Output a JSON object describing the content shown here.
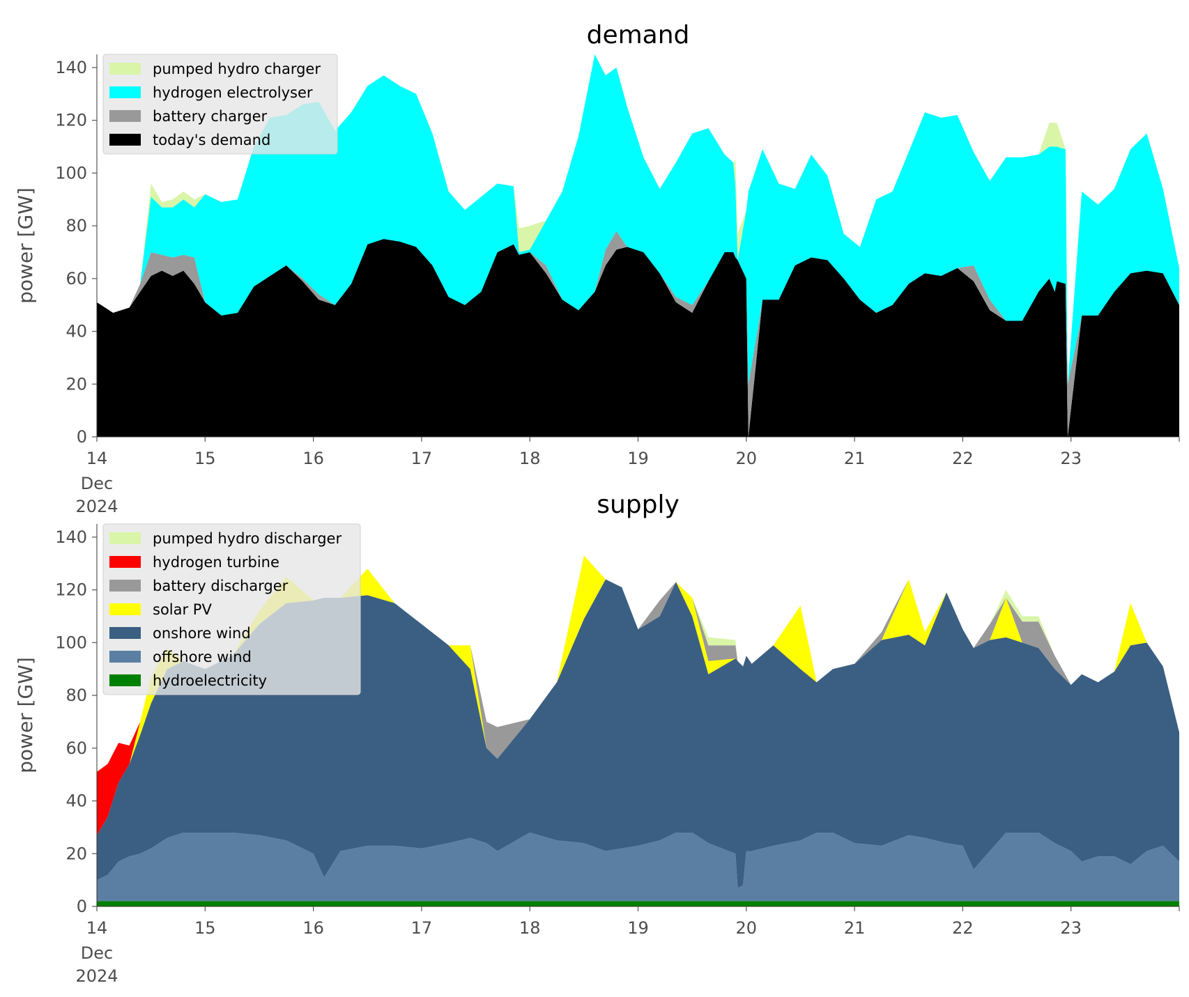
{
  "chart_data": [
    {
      "type": "area",
      "title": "demand",
      "xlabel": "",
      "ylabel": "power [GW]",
      "ylim": [
        0,
        145
      ],
      "xlim": [
        0,
        10
      ],
      "x_ticks": [
        {
          "label": "14",
          "sub": [
            "Dec",
            "2024"
          ]
        },
        {
          "label": "15"
        },
        {
          "label": "16"
        },
        {
          "label": "17"
        },
        {
          "label": "18"
        },
        {
          "label": "19"
        },
        {
          "label": "20"
        },
        {
          "label": "21"
        },
        {
          "label": "22"
        },
        {
          "label": "23"
        }
      ],
      "y_ticks": [
        "0",
        "20",
        "40",
        "60",
        "80",
        "100",
        "120",
        "140"
      ],
      "grid": false,
      "legend_position": "top-left",
      "x_days": [
        0,
        0.15,
        0.3,
        0.4,
        0.5,
        0.6,
        0.7,
        0.8,
        0.9,
        1.0,
        1.15,
        1.3,
        1.45,
        1.6,
        1.75,
        1.9,
        2.05,
        2.2,
        2.35,
        2.5,
        2.65,
        2.8,
        2.95,
        3.1,
        3.25,
        3.4,
        3.55,
        3.7,
        3.85,
        3.9,
        4.0,
        4.15,
        4.3,
        4.45,
        4.6,
        4.7,
        4.8,
        4.9,
        5.05,
        5.2,
        5.35,
        5.5,
        5.65,
        5.8,
        5.88,
        5.9,
        5.92,
        6.0,
        6.02,
        6.15,
        6.3,
        6.45,
        6.6,
        6.75,
        6.9,
        7.05,
        7.2,
        7.35,
        7.5,
        7.65,
        7.8,
        7.95,
        8.1,
        8.25,
        8.4,
        8.55,
        8.7,
        8.8,
        8.85,
        8.87,
        8.95,
        8.97,
        9.1,
        9.25,
        9.4,
        9.55,
        9.7,
        9.85,
        10.0
      ],
      "series": [
        {
          "name": "today's demand",
          "color": "#000000",
          "values": [
            51,
            47,
            49,
            55,
            61,
            63,
            61,
            63,
            58,
            51,
            46,
            47,
            57,
            61,
            65,
            59,
            52,
            50,
            58,
            73,
            75,
            74,
            72,
            65,
            53,
            50,
            55,
            70,
            73,
            69,
            70,
            62,
            52,
            48,
            55,
            65,
            71,
            72,
            70,
            62,
            51,
            47,
            59,
            70,
            70,
            68,
            67,
            60,
            0,
            52,
            52,
            65,
            68,
            67,
            60,
            52,
            47,
            50,
            58,
            62,
            61,
            64,
            59,
            48,
            44,
            44,
            55,
            60,
            55,
            59,
            58,
            0,
            46,
            46,
            55,
            62,
            63,
            62,
            50
          ]
        },
        {
          "name": "battery charger",
          "color": "#999999",
          "values": [
            0,
            0,
            0,
            3,
            9,
            6,
            7,
            6,
            10,
            0,
            0,
            0,
            0,
            0,
            0,
            1,
            2,
            0,
            0,
            0,
            0,
            0,
            0,
            0,
            0,
            0,
            0,
            0,
            0,
            0,
            0,
            3,
            0,
            0,
            0,
            6,
            7,
            0,
            0,
            0,
            2,
            3,
            0,
            0,
            0,
            0,
            0,
            0,
            20,
            0,
            0,
            0,
            0,
            0,
            0,
            0,
            0,
            0,
            0,
            0,
            0,
            0,
            6,
            4,
            0,
            0,
            0,
            0,
            0,
            0,
            0,
            20,
            0,
            0,
            0,
            0,
            0,
            0,
            0
          ]
        },
        {
          "name": "hydrogen electrolyser",
          "color": "#00ffff",
          "values": [
            0,
            0,
            0,
            0,
            21,
            18,
            19,
            21,
            19,
            41,
            43,
            43,
            53,
            60,
            57,
            66,
            73,
            66,
            65,
            60,
            62,
            59,
            58,
            50,
            40,
            36,
            36,
            26,
            22,
            1,
            1,
            17,
            41,
            66,
            90,
            66,
            62,
            53,
            36,
            32,
            51,
            65,
            58,
            37,
            34,
            27,
            0,
            26,
            73,
            57,
            44,
            29,
            39,
            32,
            17,
            20,
            43,
            43,
            50,
            61,
            60,
            58,
            43,
            45,
            62,
            62,
            52,
            50,
            55,
            51,
            51,
            0,
            47,
            42,
            39,
            47,
            52,
            32,
            14
          ]
        },
        {
          "name": "pumped hydro charger",
          "color": "#d9f5a8",
          "values": [
            0,
            0,
            0,
            0,
            5,
            2,
            3,
            3,
            3,
            0,
            0,
            0,
            0,
            0,
            0,
            0,
            0,
            0,
            0,
            0,
            0,
            0,
            0,
            0,
            0,
            0,
            0,
            0,
            0,
            9,
            9,
            0,
            0,
            0,
            0,
            0,
            0,
            0,
            0,
            0,
            0,
            0,
            0,
            0,
            0,
            10,
            10,
            0,
            0,
            0,
            0,
            0,
            0,
            0,
            0,
            0,
            0,
            0,
            0,
            0,
            0,
            0,
            0,
            0,
            0,
            0,
            0,
            9,
            9,
            9,
            0,
            0,
            0,
            0,
            0,
            0,
            0,
            0,
            0
          ]
        }
      ],
      "legend": [
        "pumped hydro charger",
        "hydrogen electrolyser",
        "battery charger",
        "today's demand"
      ]
    },
    {
      "type": "area",
      "title": "supply",
      "xlabel": "",
      "ylabel": "power [GW]",
      "ylim": [
        0,
        145
      ],
      "xlim": [
        0,
        10
      ],
      "x_ticks": [
        {
          "label": "14",
          "sub": [
            "Dec",
            "2024"
          ]
        },
        {
          "label": "15"
        },
        {
          "label": "16"
        },
        {
          "label": "17"
        },
        {
          "label": "18"
        },
        {
          "label": "19"
        },
        {
          "label": "20"
        },
        {
          "label": "21"
        },
        {
          "label": "22"
        },
        {
          "label": "23"
        }
      ],
      "y_ticks": [
        "0",
        "20",
        "40",
        "60",
        "80",
        "100",
        "120",
        "140"
      ],
      "grid": false,
      "legend_position": "top-left",
      "x_days": [
        0,
        0.1,
        0.2,
        0.3,
        0.4,
        0.5,
        0.65,
        0.8,
        1.0,
        1.25,
        1.5,
        1.75,
        2.0,
        2.1,
        2.25,
        2.5,
        2.75,
        3.0,
        3.25,
        3.45,
        3.6,
        3.7,
        4.0,
        4.25,
        4.5,
        4.7,
        4.85,
        5.0,
        5.2,
        5.35,
        5.5,
        5.65,
        5.9,
        5.92,
        5.97,
        6.0,
        6.05,
        6.25,
        6.5,
        6.65,
        6.8,
        7.0,
        7.25,
        7.5,
        7.65,
        7.85,
        8.0,
        8.1,
        8.25,
        8.4,
        8.55,
        8.7,
        8.85,
        9.0,
        9.1,
        9.25,
        9.4,
        9.55,
        9.7,
        9.85,
        10.0
      ],
      "series": [
        {
          "name": "hydroelectricity",
          "color": "#008000",
          "values": [
            2,
            2,
            2,
            2,
            2,
            2,
            2,
            2,
            2,
            2,
            2,
            2,
            2,
            2,
            2,
            2,
            2,
            2,
            2,
            2,
            2,
            2,
            2,
            2,
            2,
            2,
            2,
            2,
            2,
            2,
            2,
            2,
            2,
            2,
            2,
            2,
            2,
            2,
            2,
            2,
            2,
            2,
            2,
            2,
            2,
            2,
            2,
            2,
            2,
            2,
            2,
            2,
            2,
            2,
            2,
            2,
            2,
            2,
            2,
            2,
            2
          ]
        },
        {
          "name": "offshore wind",
          "color": "#5b7fa3",
          "values": [
            8,
            10,
            15,
            17,
            18,
            20,
            24,
            26,
            26,
            26,
            25,
            23,
            18,
            9,
            19,
            21,
            21,
            20,
            22,
            24,
            22,
            19,
            26,
            23,
            22,
            19,
            20,
            21,
            23,
            26,
            26,
            22,
            18,
            5,
            6,
            19,
            19,
            21,
            23,
            26,
            26,
            22,
            21,
            25,
            24,
            22,
            21,
            12,
            19,
            26,
            26,
            26,
            22,
            19,
            15,
            17,
            17,
            14,
            19,
            21,
            15
          ]
        },
        {
          "name": "onshore wind",
          "color": "#3b5f82",
          "values": [
            17,
            22,
            30,
            35,
            45,
            55,
            64,
            65,
            62,
            67,
            80,
            90,
            96,
            106,
            96,
            95,
            92,
            85,
            75,
            64,
            36,
            35,
            43,
            60,
            85,
            103,
            99,
            82,
            85,
            95,
            82,
            64,
            74,
            86,
            83,
            74,
            71,
            76,
            65,
            57,
            62,
            68,
            78,
            76,
            73,
            95,
            82,
            84,
            80,
            74,
            72,
            70,
            66,
            63,
            71,
            66,
            70,
            83,
            79,
            68,
            49
          ]
        },
        {
          "name": "solar PV",
          "color": "#ffff00",
          "values": [
            0,
            0,
            0,
            0,
            5,
            10,
            8,
            0,
            0,
            0,
            5,
            10,
            0,
            0,
            0,
            10,
            0,
            0,
            0,
            9,
            0,
            0,
            0,
            0,
            24,
            0,
            0,
            0,
            0,
            0,
            7,
            5,
            0,
            0,
            0,
            0,
            0,
            0,
            24,
            0,
            0,
            0,
            0,
            21,
            5,
            0,
            0,
            0,
            0,
            15,
            0,
            0,
            0,
            0,
            0,
            0,
            0,
            16,
            0,
            0,
            0
          ]
        },
        {
          "name": "battery discharger",
          "color": "#999999",
          "values": [
            0,
            0,
            0,
            0,
            0,
            0,
            0,
            0,
            0,
            0,
            0,
            0,
            0,
            0,
            0,
            0,
            0,
            0,
            0,
            0,
            10,
            12,
            0,
            0,
            0,
            0,
            0,
            0,
            6,
            0,
            0,
            6,
            5,
            0,
            0,
            0,
            0,
            0,
            0,
            0,
            0,
            0,
            3,
            0,
            0,
            0,
            0,
            0,
            6,
            0,
            8,
            10,
            5,
            0,
            0,
            0,
            0,
            0,
            0,
            0,
            0
          ]
        },
        {
          "name": "hydrogen turbine",
          "color": "#ff0000",
          "values": [
            24,
            20,
            15,
            7,
            0,
            0,
            0,
            0,
            0,
            0,
            0,
            0,
            0,
            0,
            0,
            0,
            0,
            0,
            0,
            0,
            0,
            0,
            0,
            0,
            0,
            0,
            0,
            0,
            0,
            0,
            0,
            0,
            0,
            0,
            0,
            0,
            0,
            0,
            0,
            0,
            0,
            0,
            0,
            0,
            0,
            0,
            0,
            0,
            0,
            0,
            0,
            0,
            0,
            0,
            0,
            0,
            0,
            0,
            0,
            0,
            0
          ]
        },
        {
          "name": "pumped hydro discharger",
          "color": "#d9f5a8",
          "values": [
            0,
            0,
            0,
            0,
            0,
            0,
            0,
            0,
            0,
            0,
            0,
            0,
            0,
            0,
            0,
            0,
            0,
            0,
            0,
            0,
            0,
            0,
            0,
            0,
            0,
            0,
            0,
            0,
            0,
            0,
            0,
            3,
            2,
            0,
            0,
            0,
            0,
            0,
            0,
            0,
            0,
            0,
            0,
            0,
            0,
            0,
            0,
            0,
            0,
            3,
            2,
            2,
            0,
            0,
            0,
            0,
            0,
            0,
            0,
            0,
            0
          ]
        }
      ],
      "legend": [
        "pumped hydro discharger",
        "hydrogen turbine",
        "battery discharger",
        "solar PV",
        "onshore wind",
        "offshore wind",
        "hydroelectricity"
      ]
    }
  ]
}
